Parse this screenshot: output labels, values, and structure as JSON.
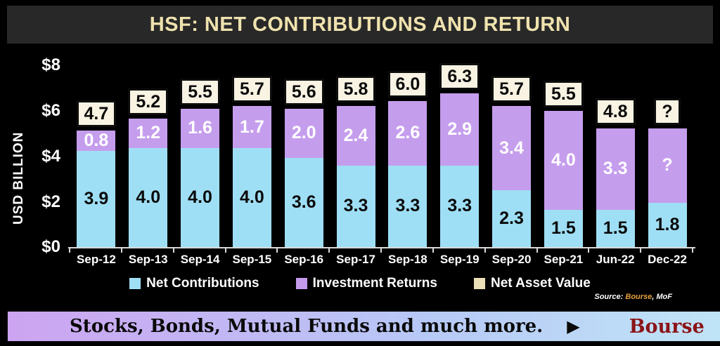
{
  "title": "HSF: NET CONTRIBUTIONS AND RETURN",
  "y_axis": {
    "label": "USD BILLION",
    "ticks": [
      "$8",
      "$6",
      "$4",
      "$2",
      "$0"
    ]
  },
  "chart_data": {
    "type": "bar",
    "stacked": true,
    "title": "HSF: NET CONTRIBUTIONS AND RETURN",
    "ylabel": "USD BILLION",
    "ylim": [
      0,
      8
    ],
    "grid": false,
    "legend_position": "bottom",
    "categories": [
      "Sep-12",
      "Sep-13",
      "Sep-14",
      "Sep-15",
      "Sep-16",
      "Sep-17",
      "Sep-18",
      "Sep-19",
      "Sep-20",
      "Sep-21",
      "Jun-22",
      "Dec-22"
    ],
    "series": [
      {
        "name": "Net Contributions",
        "color": "#9fdff5",
        "values": [
          3.9,
          4.0,
          4.0,
          4.0,
          3.6,
          3.3,
          3.3,
          3.3,
          2.3,
          1.5,
          1.5,
          1.8
        ],
        "labels": [
          "3.9",
          "4.0",
          "4.0",
          "4.0",
          "3.6",
          "3.3",
          "3.3",
          "3.3",
          "2.3",
          "1.5",
          "1.5",
          "1.8"
        ]
      },
      {
        "name": "Investment Returns",
        "color": "#c59ded",
        "values": [
          0.8,
          1.2,
          1.6,
          1.7,
          2.0,
          2.4,
          2.6,
          2.9,
          3.4,
          4.0,
          3.3,
          null
        ],
        "labels": [
          "0.8",
          "1.2",
          "1.6",
          "1.7",
          "2.0",
          "2.4",
          "2.6",
          "2.9",
          "3.4",
          "4.0",
          "3.3",
          "?"
        ],
        "unknown_bar_height_est": 3.0
      }
    ],
    "totals": {
      "name": "Net Asset Value",
      "labels": [
        "4.7",
        "5.2",
        "5.5",
        "5.7",
        "5.6",
        "5.8",
        "6.0",
        "6.3",
        "5.7",
        "5.5",
        "4.8",
        "?"
      ]
    }
  },
  "legend": [
    {
      "label": "Net Contributions",
      "color": "#9fdff5"
    },
    {
      "label": "Investment Returns",
      "color": "#c49beb"
    },
    {
      "label": "Net Asset Value",
      "color": "#ebdfb8"
    }
  ],
  "source": {
    "prefix": "Source: ",
    "brand": "Bourse",
    "suffix": ", MoF"
  },
  "banner": {
    "text": "Stocks, Bonds, Mutual Funds and much more.",
    "arrow": "▶",
    "brand": "Bourse"
  }
}
